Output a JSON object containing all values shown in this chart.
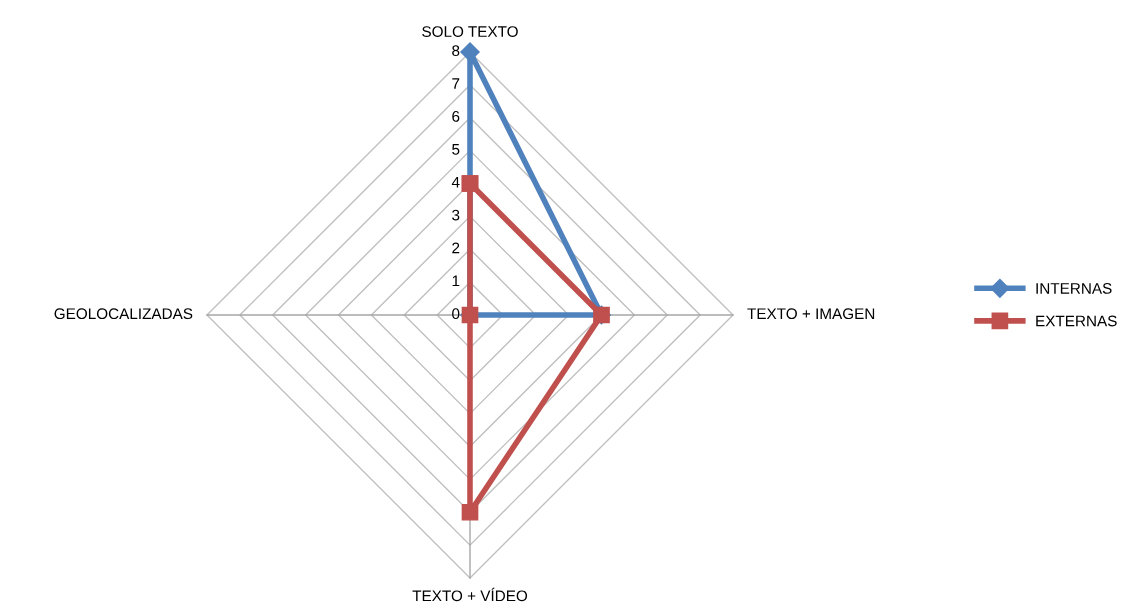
{
  "chart_data": {
    "type": "radar",
    "categories": [
      "SOLO TEXTO",
      "TEXTO + IMAGEN",
      "TEXTO + VÍDEO",
      "GEOLOCALIZADAS"
    ],
    "series": [
      {
        "name": "INTERNAS",
        "color": "#4f81bd",
        "marker": "diamond",
        "values": [
          8,
          4,
          0,
          0
        ]
      },
      {
        "name": "EXTERNAS",
        "color": "#c0504d",
        "marker": "square",
        "values": [
          4,
          4,
          6,
          0
        ]
      }
    ],
    "ylim": [
      0,
      8
    ],
    "yticks": [
      0,
      1,
      2,
      3,
      4,
      5,
      6,
      7,
      8
    ],
    "grid": true,
    "legend": "right"
  }
}
